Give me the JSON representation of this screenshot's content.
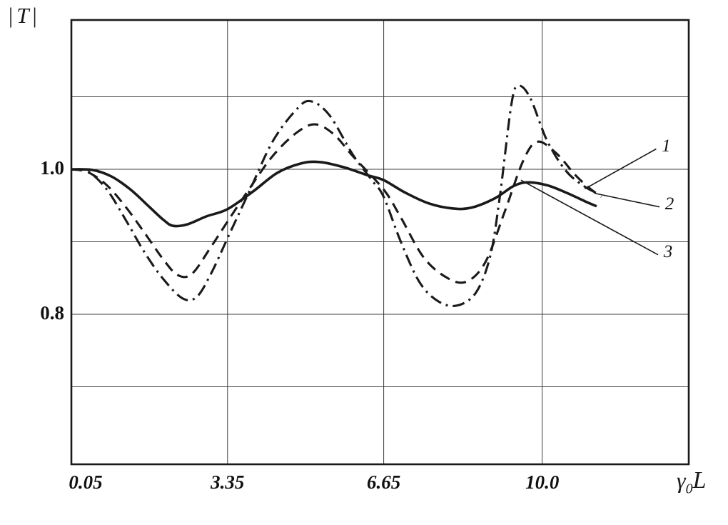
{
  "figure": {
    "y_axis_label": {
      "left_bar": "|",
      "symbol": "T",
      "right_bar": "|"
    },
    "x_axis_label": {
      "symbol": "γ",
      "subscript": "0",
      "suffix": "L"
    }
  },
  "colors": {
    "line": "#1a1a1a",
    "grid": "#3d3d3d",
    "border": "#1a1a1a",
    "background": "#ffffff"
  },
  "chart_data": {
    "type": "line",
    "title": "",
    "xlabel": "γ0L",
    "ylabel": "|T|",
    "x_range": [
      0.05,
      13.1
    ],
    "y_range": [
      0.59,
      1.21
    ],
    "grid": true,
    "x_ticks": [
      0.05,
      3.35,
      6.65,
      10.0
    ],
    "x_tick_labels": [
      "0.05",
      "3.35",
      "6.65",
      "10.0"
    ],
    "y_ticks": [
      1.0,
      0.8
    ],
    "y_tick_labels": [
      "1.0",
      "0.8"
    ],
    "x_gridlines": [
      3.35,
      6.65,
      10.0
    ],
    "y_gridlines": [
      1.1,
      1.0,
      0.9,
      0.8,
      0.7
    ],
    "series": [
      {
        "name": "1",
        "style": "dash-dot",
        "points": [
          [
            0.05,
            1.0
          ],
          [
            0.4,
            0.997
          ],
          [
            0.8,
            0.972
          ],
          [
            1.2,
            0.93
          ],
          [
            1.6,
            0.885
          ],
          [
            2.0,
            0.848
          ],
          [
            2.4,
            0.822
          ],
          [
            2.7,
            0.824
          ],
          [
            3.0,
            0.856
          ],
          [
            3.35,
            0.905
          ],
          [
            3.8,
            0.968
          ],
          [
            4.3,
            1.038
          ],
          [
            4.8,
            1.082
          ],
          [
            5.1,
            1.094
          ],
          [
            5.5,
            1.075
          ],
          [
            6.0,
            1.02
          ],
          [
            6.4,
            0.985
          ],
          [
            6.65,
            0.962
          ],
          [
            7.0,
            0.902
          ],
          [
            7.4,
            0.845
          ],
          [
            7.8,
            0.818
          ],
          [
            8.2,
            0.812
          ],
          [
            8.6,
            0.83
          ],
          [
            8.9,
            0.88
          ],
          [
            9.1,
            0.96
          ],
          [
            9.35,
            1.09
          ],
          [
            9.5,
            1.115
          ],
          [
            9.75,
            1.098
          ],
          [
            10.1,
            1.04
          ],
          [
            10.5,
            0.998
          ],
          [
            10.9,
            0.976
          ],
          [
            11.2,
            0.966
          ]
        ]
      },
      {
        "name": "2",
        "style": "dashed",
        "points": [
          [
            0.05,
            1.0
          ],
          [
            0.4,
            0.996
          ],
          [
            0.8,
            0.978
          ],
          [
            1.2,
            0.948
          ],
          [
            1.6,
            0.912
          ],
          [
            2.0,
            0.875
          ],
          [
            2.3,
            0.854
          ],
          [
            2.6,
            0.856
          ],
          [
            3.0,
            0.893
          ],
          [
            3.35,
            0.928
          ],
          [
            3.8,
            0.972
          ],
          [
            4.3,
            1.018
          ],
          [
            4.8,
            1.05
          ],
          [
            5.2,
            1.062
          ],
          [
            5.6,
            1.048
          ],
          [
            6.0,
            1.018
          ],
          [
            6.65,
            0.972
          ],
          [
            7.0,
            0.935
          ],
          [
            7.5,
            0.878
          ],
          [
            8.0,
            0.85
          ],
          [
            8.4,
            0.845
          ],
          [
            8.8,
            0.872
          ],
          [
            9.2,
            0.94
          ],
          [
            9.6,
            1.012
          ],
          [
            9.9,
            1.038
          ],
          [
            10.3,
            1.022
          ],
          [
            10.7,
            0.992
          ],
          [
            11.0,
            0.974
          ],
          [
            11.25,
            0.962
          ]
        ]
      },
      {
        "name": "3",
        "style": "solid",
        "points": [
          [
            0.05,
            1.0
          ],
          [
            0.5,
            0.999
          ],
          [
            0.9,
            0.99
          ],
          [
            1.3,
            0.972
          ],
          [
            1.7,
            0.948
          ],
          [
            2.0,
            0.93
          ],
          [
            2.2,
            0.922
          ],
          [
            2.5,
            0.924
          ],
          [
            2.9,
            0.935
          ],
          [
            3.35,
            0.945
          ],
          [
            3.9,
            0.97
          ],
          [
            4.4,
            0.995
          ],
          [
            4.9,
            1.008
          ],
          [
            5.3,
            1.01
          ],
          [
            5.8,
            1.003
          ],
          [
            6.3,
            0.992
          ],
          [
            6.65,
            0.985
          ],
          [
            7.1,
            0.968
          ],
          [
            7.6,
            0.953
          ],
          [
            8.1,
            0.946
          ],
          [
            8.5,
            0.947
          ],
          [
            9.0,
            0.96
          ],
          [
            9.4,
            0.977
          ],
          [
            9.7,
            0.982
          ],
          [
            10.1,
            0.978
          ],
          [
            10.5,
            0.968
          ],
          [
            10.9,
            0.956
          ],
          [
            11.15,
            0.949
          ]
        ]
      }
    ],
    "annotations": [
      {
        "text": "1",
        "label_pos": [
          12.62,
          1.032
        ],
        "target": [
          10.9,
          0.973
        ]
      },
      {
        "text": "2",
        "label_pos": [
          12.69,
          0.952
        ],
        "target": [
          11.1,
          0.967
        ]
      },
      {
        "text": "3",
        "label_pos": [
          12.66,
          0.886
        ],
        "target": [
          9.55,
          0.985
        ]
      }
    ]
  }
}
